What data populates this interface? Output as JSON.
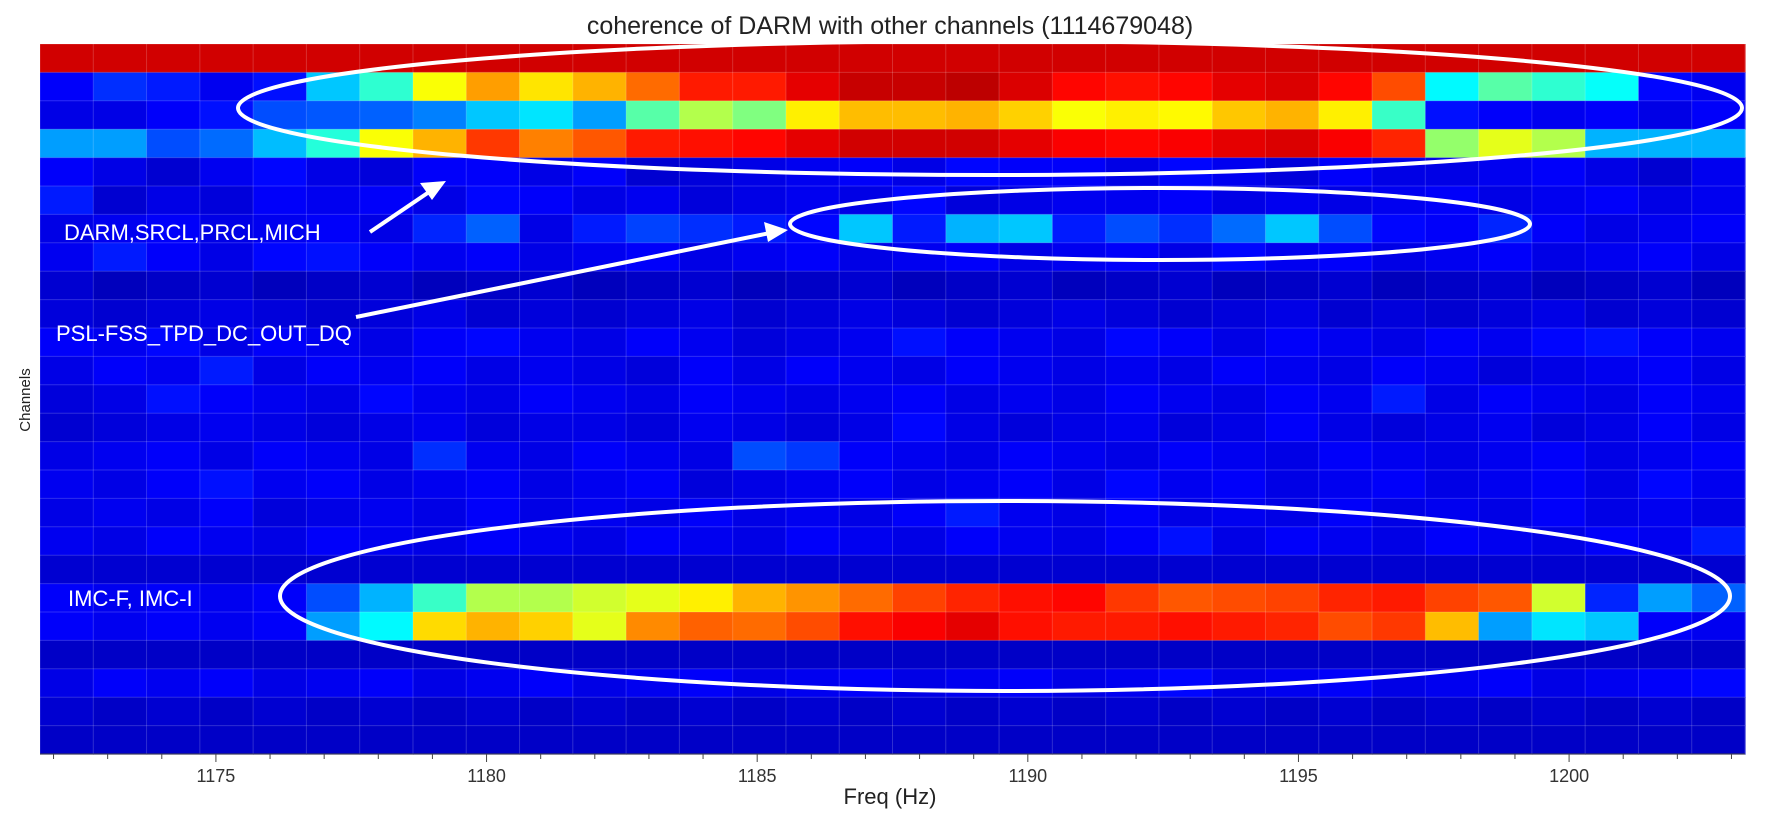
{
  "chart_data": {
    "type": "heatmap",
    "title": "coherence of DARM with other channels (1114679048)",
    "xlabel": "Freq (Hz)",
    "ylabel": "Channels",
    "xlim": [
      1171.75,
      1203.25
    ],
    "x_ticks": [
      "1175",
      "1180",
      "1185",
      "1190",
      "1195",
      "1200"
    ],
    "x_start": 1172,
    "x_step": 1,
    "colormap": "jet",
    "zlim": [
      0,
      1
    ],
    "grid": true,
    "rows": [
      [
        0.92,
        0.92,
        0.92,
        0.92,
        0.92,
        0.92,
        0.92,
        0.92,
        0.92,
        0.92,
        0.92,
        0.92,
        0.92,
        0.92,
        0.92,
        0.92,
        0.92,
        0.92,
        0.92,
        0.92,
        0.92,
        0.92,
        0.92,
        0.92,
        0.92,
        0.92,
        0.92,
        0.92,
        0.92,
        0.92,
        0.92,
        0.92
      ],
      [
        0.12,
        0.17,
        0.15,
        0.11,
        0.14,
        0.32,
        0.42,
        0.62,
        0.72,
        0.65,
        0.7,
        0.77,
        0.85,
        0.85,
        0.9,
        0.93,
        0.93,
        0.94,
        0.91,
        0.87,
        0.86,
        0.87,
        0.9,
        0.91,
        0.87,
        0.8,
        0.37,
        0.46,
        0.42,
        0.38,
        0.13,
        0.11
      ],
      [
        0.1,
        0.1,
        0.12,
        0.14,
        0.2,
        0.21,
        0.22,
        0.25,
        0.32,
        0.35,
        0.28,
        0.46,
        0.55,
        0.5,
        0.64,
        0.69,
        0.69,
        0.7,
        0.67,
        0.62,
        0.64,
        0.63,
        0.68,
        0.7,
        0.64,
        0.43,
        0.14,
        0.12,
        0.11,
        0.12,
        0.1,
        0.12
      ],
      [
        0.28,
        0.28,
        0.2,
        0.23,
        0.31,
        0.41,
        0.62,
        0.7,
        0.82,
        0.75,
        0.79,
        0.85,
        0.86,
        0.87,
        0.9,
        0.92,
        0.92,
        0.92,
        0.9,
        0.88,
        0.87,
        0.88,
        0.9,
        0.91,
        0.88,
        0.84,
        0.52,
        0.6,
        0.55,
        0.3,
        0.3,
        0.3
      ],
      [
        0.12,
        0.1,
        0.08,
        0.11,
        0.13,
        0.1,
        0.09,
        0.12,
        0.12,
        0.1,
        0.12,
        0.08,
        0.09,
        0.1,
        0.11,
        0.12,
        0.1,
        0.13,
        0.12,
        0.12,
        0.1,
        0.13,
        0.11,
        0.09,
        0.12,
        0.1,
        0.1,
        0.11,
        0.12,
        0.1,
        0.08,
        0.11
      ],
      [
        0.15,
        0.08,
        0.1,
        0.09,
        0.12,
        0.11,
        0.12,
        0.1,
        0.13,
        0.12,
        0.1,
        0.11,
        0.09,
        0.1,
        0.11,
        0.1,
        0.13,
        0.09,
        0.1,
        0.11,
        0.11,
        0.12,
        0.1,
        0.11,
        0.1,
        0.11,
        0.12,
        0.1,
        0.11,
        0.12,
        0.1,
        0.11
      ],
      [
        0.1,
        0.11,
        0.12,
        0.1,
        0.11,
        0.12,
        0.1,
        0.16,
        0.22,
        0.1,
        0.15,
        0.19,
        0.17,
        0.15,
        0.13,
        0.32,
        0.15,
        0.3,
        0.32,
        0.15,
        0.2,
        0.17,
        0.23,
        0.32,
        0.2,
        0.13,
        0.12,
        0.16,
        0.12,
        0.1,
        0.11,
        0.12
      ],
      [
        0.11,
        0.15,
        0.12,
        0.1,
        0.13,
        0.14,
        0.12,
        0.11,
        0.12,
        0.1,
        0.11,
        0.12,
        0.1,
        0.11,
        0.12,
        0.1,
        0.11,
        0.12,
        0.1,
        0.11,
        0.12,
        0.1,
        0.13,
        0.11,
        0.12,
        0.1,
        0.11,
        0.12,
        0.1,
        0.11,
        0.12,
        0.1
      ],
      [
        0.08,
        0.06,
        0.07,
        0.08,
        0.06,
        0.07,
        0.08,
        0.06,
        0.07,
        0.08,
        0.06,
        0.07,
        0.08,
        0.06,
        0.07,
        0.08,
        0.06,
        0.07,
        0.08,
        0.06,
        0.07,
        0.08,
        0.06,
        0.07,
        0.08,
        0.06,
        0.07,
        0.08,
        0.06,
        0.07,
        0.08,
        0.06
      ],
      [
        0.09,
        0.08,
        0.09,
        0.1,
        0.09,
        0.08,
        0.09,
        0.1,
        0.08,
        0.09,
        0.08,
        0.09,
        0.1,
        0.08,
        0.09,
        0.1,
        0.09,
        0.08,
        0.09,
        0.1,
        0.09,
        0.08,
        0.09,
        0.1,
        0.08,
        0.09,
        0.08,
        0.09,
        0.1,
        0.08,
        0.09,
        0.08
      ],
      [
        0.12,
        0.11,
        0.13,
        0.1,
        0.12,
        0.11,
        0.1,
        0.12,
        0.13,
        0.11,
        0.1,
        0.12,
        0.11,
        0.09,
        0.1,
        0.11,
        0.14,
        0.12,
        0.11,
        0.1,
        0.13,
        0.12,
        0.1,
        0.12,
        0.11,
        0.1,
        0.12,
        0.11,
        0.13,
        0.14,
        0.12,
        0.11
      ],
      [
        0.1,
        0.12,
        0.11,
        0.15,
        0.1,
        0.12,
        0.11,
        0.12,
        0.1,
        0.11,
        0.1,
        0.09,
        0.12,
        0.1,
        0.12,
        0.11,
        0.1,
        0.12,
        0.11,
        0.1,
        0.11,
        0.1,
        0.12,
        0.11,
        0.1,
        0.12,
        0.11,
        0.09,
        0.1,
        0.11,
        0.12,
        0.1
      ],
      [
        0.09,
        0.1,
        0.14,
        0.12,
        0.11,
        0.1,
        0.13,
        0.11,
        0.1,
        0.12,
        0.11,
        0.1,
        0.12,
        0.11,
        0.1,
        0.11,
        0.12,
        0.1,
        0.11,
        0.1,
        0.12,
        0.11,
        0.1,
        0.12,
        0.11,
        0.15,
        0.1,
        0.12,
        0.11,
        0.1,
        0.12,
        0.11
      ],
      [
        0.08,
        0.09,
        0.1,
        0.11,
        0.1,
        0.09,
        0.1,
        0.11,
        0.09,
        0.1,
        0.1,
        0.09,
        0.11,
        0.1,
        0.09,
        0.1,
        0.13,
        0.1,
        0.09,
        0.1,
        0.11,
        0.09,
        0.1,
        0.12,
        0.1,
        0.09,
        0.1,
        0.11,
        0.09,
        0.1,
        0.12,
        0.1
      ],
      [
        0.1,
        0.11,
        0.12,
        0.1,
        0.12,
        0.11,
        0.1,
        0.17,
        0.11,
        0.1,
        0.12,
        0.11,
        0.1,
        0.2,
        0.18,
        0.12,
        0.11,
        0.1,
        0.12,
        0.11,
        0.1,
        0.12,
        0.11,
        0.1,
        0.12,
        0.11,
        0.1,
        0.11,
        0.12,
        0.1,
        0.11,
        0.12
      ],
      [
        0.11,
        0.1,
        0.12,
        0.14,
        0.11,
        0.12,
        0.1,
        0.11,
        0.12,
        0.1,
        0.11,
        0.12,
        0.09,
        0.1,
        0.11,
        0.12,
        0.1,
        0.11,
        0.12,
        0.1,
        0.13,
        0.11,
        0.12,
        0.1,
        0.11,
        0.12,
        0.1,
        0.11,
        0.12,
        0.1,
        0.13,
        0.11
      ],
      [
        0.1,
        0.11,
        0.1,
        0.12,
        0.09,
        0.1,
        0.11,
        0.1,
        0.12,
        0.1,
        0.11,
        0.1,
        0.12,
        0.1,
        0.11,
        0.1,
        0.12,
        0.15,
        0.11,
        0.1,
        0.12,
        0.1,
        0.11,
        0.1,
        0.12,
        0.1,
        0.11,
        0.1,
        0.12,
        0.1,
        0.11,
        0.1
      ],
      [
        0.11,
        0.1,
        0.12,
        0.11,
        0.1,
        0.12,
        0.11,
        0.1,
        0.12,
        0.11,
        0.1,
        0.12,
        0.11,
        0.1,
        0.12,
        0.11,
        0.1,
        0.12,
        0.11,
        0.1,
        0.12,
        0.14,
        0.1,
        0.12,
        0.11,
        0.1,
        0.12,
        0.11,
        0.1,
        0.12,
        0.11,
        0.15
      ],
      [
        0.08,
        0.08,
        0.08,
        0.08,
        0.08,
        0.08,
        0.08,
        0.08,
        0.08,
        0.08,
        0.08,
        0.08,
        0.08,
        0.08,
        0.08,
        0.08,
        0.08,
        0.08,
        0.08,
        0.08,
        0.08,
        0.08,
        0.08,
        0.08,
        0.08,
        0.08,
        0.08,
        0.08,
        0.08,
        0.08,
        0.08,
        0.08
      ],
      [
        0.12,
        0.11,
        0.12,
        0.11,
        0.12,
        0.2,
        0.3,
        0.43,
        0.55,
        0.55,
        0.58,
        0.6,
        0.64,
        0.7,
        0.73,
        0.77,
        0.81,
        0.84,
        0.86,
        0.87,
        0.82,
        0.79,
        0.8,
        0.81,
        0.84,
        0.85,
        0.81,
        0.79,
        0.58,
        0.16,
        0.28,
        0.22
      ],
      [
        0.12,
        0.11,
        0.12,
        0.11,
        0.12,
        0.28,
        0.37,
        0.66,
        0.7,
        0.67,
        0.6,
        0.74,
        0.78,
        0.77,
        0.8,
        0.86,
        0.88,
        0.9,
        0.86,
        0.85,
        0.85,
        0.86,
        0.85,
        0.84,
        0.8,
        0.82,
        0.69,
        0.28,
        0.35,
        0.32,
        0.12,
        0.11
      ],
      [
        0.07,
        0.07,
        0.07,
        0.07,
        0.07,
        0.07,
        0.07,
        0.07,
        0.07,
        0.07,
        0.07,
        0.07,
        0.07,
        0.07,
        0.07,
        0.07,
        0.07,
        0.07,
        0.07,
        0.07,
        0.07,
        0.07,
        0.07,
        0.07,
        0.07,
        0.07,
        0.07,
        0.07,
        0.07,
        0.07,
        0.07,
        0.07
      ],
      [
        0.1,
        0.12,
        0.11,
        0.12,
        0.1,
        0.11,
        0.12,
        0.1,
        0.11,
        0.12,
        0.1,
        0.11,
        0.12,
        0.1,
        0.11,
        0.12,
        0.1,
        0.11,
        0.12,
        0.1,
        0.11,
        0.13,
        0.1,
        0.11,
        0.12,
        0.1,
        0.11,
        0.12,
        0.1,
        0.11,
        0.12,
        0.13
      ],
      [
        0.08,
        0.07,
        0.08,
        0.07,
        0.08,
        0.07,
        0.08,
        0.07,
        0.08,
        0.07,
        0.08,
        0.07,
        0.08,
        0.07,
        0.08,
        0.07,
        0.08,
        0.07,
        0.08,
        0.07,
        0.08,
        0.07,
        0.08,
        0.07,
        0.08,
        0.07,
        0.08,
        0.07,
        0.08,
        0.07,
        0.08,
        0.07
      ],
      [
        0.07,
        0.07,
        0.07,
        0.07,
        0.07,
        0.07,
        0.07,
        0.07,
        0.07,
        0.07,
        0.07,
        0.07,
        0.07,
        0.07,
        0.07,
        0.07,
        0.07,
        0.07,
        0.07,
        0.07,
        0.07,
        0.07,
        0.07,
        0.07,
        0.07,
        0.07,
        0.07,
        0.07,
        0.07,
        0.07,
        0.07,
        0.07
      ]
    ],
    "annotations": [
      {
        "text": "DARM,SRCL,PRCL,MICH"
      },
      {
        "text": "PSL-FSS_TPD_DC_OUT_DQ"
      },
      {
        "text": "IMC-F, IMC-I"
      }
    ]
  }
}
